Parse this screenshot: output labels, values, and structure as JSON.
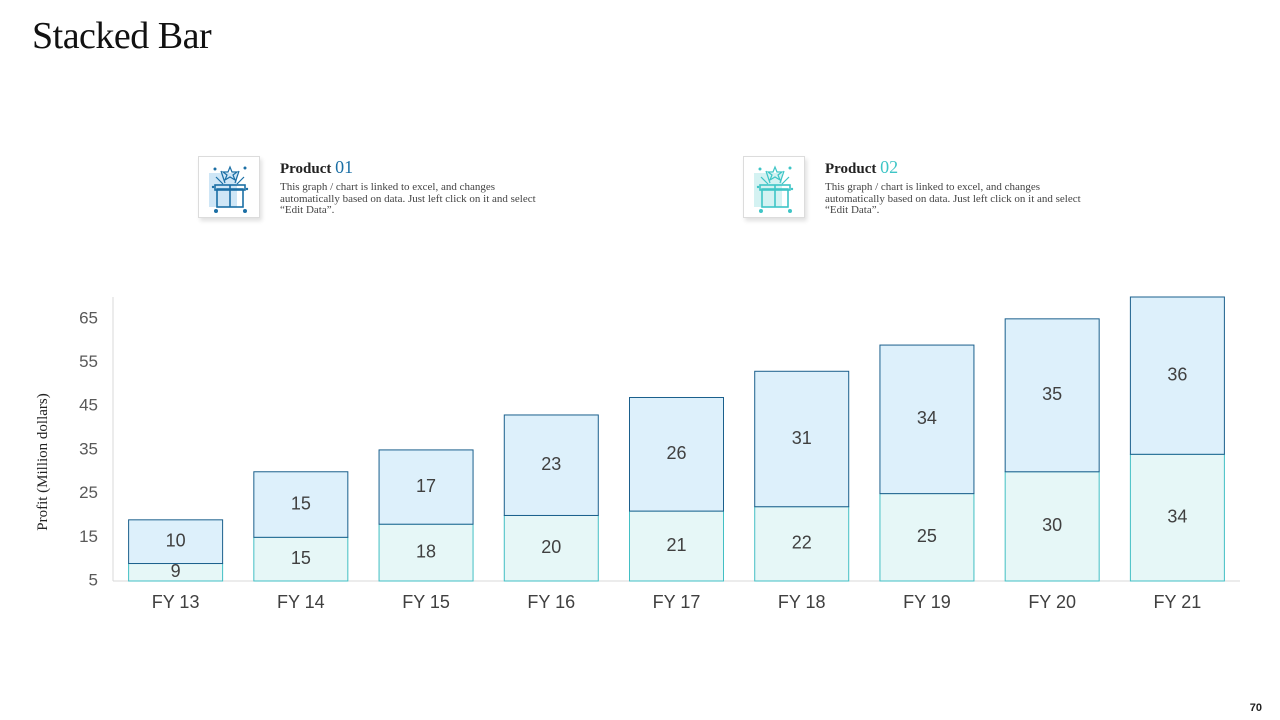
{
  "page": {
    "title": "Stacked Bar",
    "page_number": "70"
  },
  "legend": [
    {
      "label": "Product",
      "number": "01",
      "description": "This graph / chart is linked to excel, and changes automatically based on data. Just left click on it and select “Edit Data”.",
      "color": "#1b6fa5",
      "icon": "gift-box-icon"
    },
    {
      "label": "Product",
      "number": "02",
      "description": "This graph / chart is linked to excel, and changes automatically based on data. Just left click on it and select “Edit Data”.",
      "color": "#3ec5c6",
      "icon": "gift-box-icon"
    }
  ],
  "chart_data": {
    "type": "bar",
    "stacked": true,
    "title": "Stacked Bar",
    "xlabel": "",
    "ylabel": "Profit  (Million dollars)",
    "categories": [
      "FY 13",
      "FY 14",
      "FY 15",
      "FY 16",
      "FY 17",
      "FY 18",
      "FY 19",
      "FY 20",
      "FY 21"
    ],
    "series": [
      {
        "name": "Product 02",
        "values": [
          9,
          15,
          18,
          20,
          21,
          22,
          25,
          30,
          34
        ],
        "fill": "#e6f7f7",
        "stroke": "#42bfc4"
      },
      {
        "name": "Product 01",
        "values": [
          10,
          15,
          17,
          23,
          26,
          31,
          34,
          35,
          36
        ],
        "fill": "#ddf0fb",
        "stroke": "#1a5f8c"
      }
    ],
    "yticks": [
      5,
      15,
      25,
      35,
      45,
      55,
      65
    ],
    "ylim": [
      5,
      70
    ],
    "grid": false,
    "legend_position": "top"
  }
}
